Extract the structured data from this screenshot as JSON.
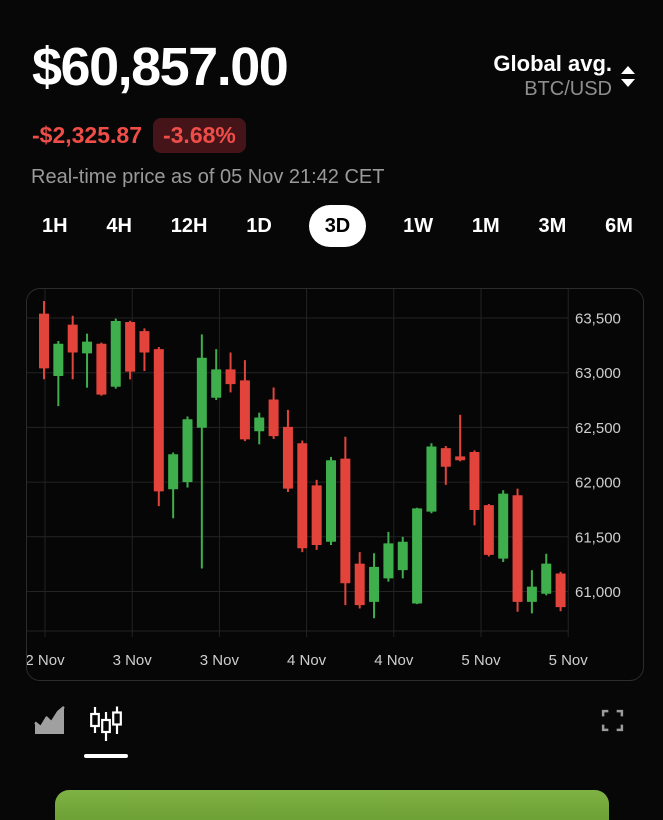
{
  "header": {
    "price": "$60,857.00",
    "change_amount": "-$2,325.87",
    "change_percent": "-3.68%",
    "timestamp": "Real-time price as of 05 Nov 21:42 CET",
    "source_label": "Global avg.",
    "pair": "BTC/USD"
  },
  "tabs": {
    "items": [
      "1H",
      "4H",
      "12H",
      "1D",
      "3D",
      "1W",
      "1M",
      "3M",
      "6M"
    ],
    "selected": "3D"
  },
  "colors": {
    "up": "#3fae4c",
    "down": "#e2443b",
    "change_red": "#ef4d48",
    "badge_bg": "#451418",
    "grid": "#232323",
    "axis_text": "#cfcfcf",
    "card_border": "#2c2c2c",
    "button_green": "#74a53c"
  },
  "icons": {
    "pair_selector": "sort-arrows",
    "toolbar_left": [
      "area-chart-icon",
      "candlestick-icon"
    ],
    "toolbar_right": "fullscreen-icon"
  },
  "toolbar": {
    "chart_types": [
      "area",
      "candlestick"
    ],
    "selected_type": "candlestick"
  },
  "chart_data": {
    "type": "candlestick",
    "pair": "BTC/USD",
    "interval": "3D",
    "legend_position": "none",
    "grid": true,
    "y_ticks": [
      63500,
      63000,
      62500,
      62000,
      61500,
      61000
    ],
    "y_tick_labels": [
      "63,500",
      "63,000",
      "62,500",
      "62,000",
      "61,500",
      "61,000"
    ],
    "x_labels": [
      "2 Nov",
      "3 Nov",
      "3 Nov",
      "4 Nov",
      "4 Nov",
      "5 Nov",
      "5 Nov"
    ],
    "ylim": [
      60600,
      63800
    ],
    "candles_ohlc": [
      [
        63540,
        63655,
        62940,
        63040
      ],
      [
        62970,
        63290,
        62695,
        63265
      ],
      [
        63440,
        63520,
        62940,
        63185
      ],
      [
        63177,
        63357,
        62863,
        63284
      ],
      [
        63265,
        63275,
        62790,
        62800
      ],
      [
        62872,
        63494,
        62855,
        63473
      ],
      [
        63463,
        63475,
        62939,
        63010
      ],
      [
        63380,
        63405,
        63015,
        63185
      ],
      [
        63215,
        63235,
        61780,
        61915
      ],
      [
        61935,
        62270,
        61670,
        62255
      ],
      [
        62000,
        62600,
        61950,
        62575
      ],
      [
        62497,
        63350,
        61210,
        63137
      ],
      [
        62771,
        63215,
        62750,
        63030
      ],
      [
        63030,
        63185,
        62820,
        62895
      ],
      [
        62930,
        63115,
        62375,
        62390
      ],
      [
        62465,
        62635,
        62345,
        62590
      ],
      [
        62755,
        62865,
        62395,
        62420
      ],
      [
        62505,
        62660,
        61910,
        61940
      ],
      [
        62355,
        62380,
        61360,
        61395
      ],
      [
        61970,
        62020,
        61380,
        61425
      ],
      [
        61455,
        62230,
        61425,
        62200
      ],
      [
        62215,
        62415,
        60875,
        61075
      ],
      [
        61255,
        61360,
        60845,
        60875
      ],
      [
        60905,
        61350,
        60755,
        61225
      ],
      [
        61120,
        61545,
        61090,
        61440
      ],
      [
        61195,
        61500,
        61120,
        61455
      ],
      [
        60890,
        61765,
        60885,
        61760
      ],
      [
        61730,
        62355,
        61715,
        62325
      ],
      [
        62310,
        62330,
        61975,
        62140
      ],
      [
        62235,
        62615,
        62190,
        62200
      ],
      [
        62275,
        62290,
        61605,
        61745
      ],
      [
        61790,
        61800,
        61320,
        61335
      ],
      [
        61300,
        61925,
        61270,
        61895
      ],
      [
        61880,
        61940,
        60815,
        60905
      ],
      [
        60905,
        61195,
        60800,
        61045
      ],
      [
        60980,
        61345,
        60965,
        61255
      ],
      [
        61165,
        61180,
        60820,
        60857
      ]
    ]
  }
}
